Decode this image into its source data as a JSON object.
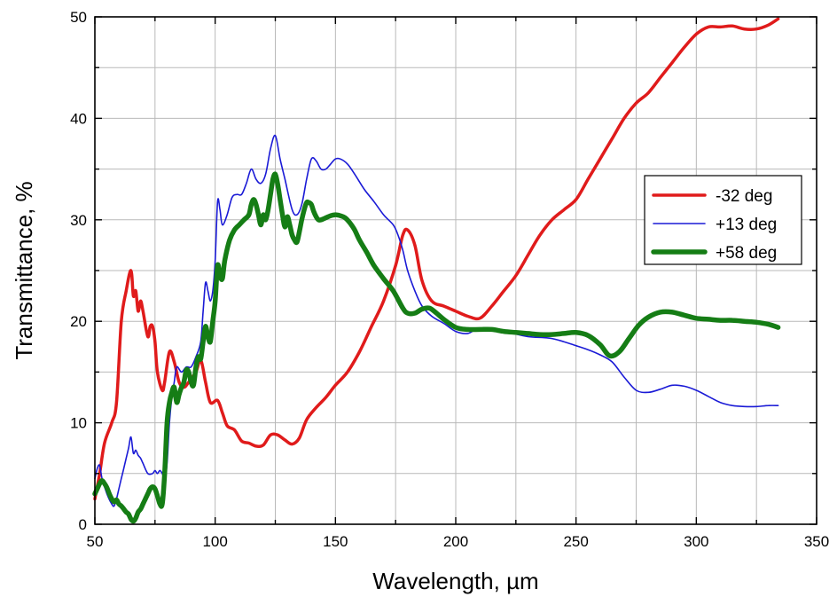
{
  "chart_data": {
    "type": "line",
    "xlabel": "Wavelength, µm",
    "ylabel": "Transmittance, %",
    "xlim": [
      50,
      350
    ],
    "ylim": [
      0,
      50
    ],
    "x_ticks": [
      "50",
      "100",
      "150",
      "200",
      "250",
      "300",
      "350"
    ],
    "y_ticks": [
      "0",
      "10",
      "20",
      "30",
      "40",
      "50"
    ],
    "grid": true,
    "legend_position": "right-middle",
    "series": [
      {
        "name": "-32 deg",
        "color": "#e01b1b",
        "line_width": 3.5,
        "x": [
          50,
          52,
          54,
          57,
          59,
          61,
          63,
          65,
          66,
          67,
          68,
          69,
          70,
          72,
          73,
          74,
          75,
          76,
          78,
          79,
          81,
          83,
          85,
          87,
          89,
          92,
          94,
          96,
          98,
          101,
          103,
          105,
          108,
          111,
          114,
          117,
          120,
          123,
          126,
          129,
          132,
          135,
          138,
          142,
          146,
          150,
          155,
          160,
          165,
          170,
          175,
          178,
          180,
          183,
          186,
          190,
          195,
          200,
          205,
          210,
          215,
          220,
          225,
          230,
          235,
          240,
          245,
          250,
          255,
          260,
          265,
          270,
          275,
          280,
          285,
          290,
          295,
          300,
          305,
          310,
          315,
          320,
          325,
          330,
          334
        ],
        "y": [
          2.5,
          5,
          8,
          10,
          12,
          20,
          23,
          25,
          22.5,
          23,
          21,
          22,
          21,
          18.5,
          19.5,
          19.5,
          18,
          15,
          13.2,
          14,
          17,
          16,
          14,
          13.5,
          14,
          15,
          16.2,
          14,
          12,
          12.2,
          11,
          9.7,
          9.3,
          8.2,
          8,
          7.7,
          7.8,
          8.8,
          8.8,
          8.3,
          7.9,
          8.5,
          10.3,
          11.5,
          12.5,
          13.7,
          15,
          17,
          19.5,
          22,
          25.5,
          28.5,
          29,
          27.5,
          24,
          22,
          21.5,
          21,
          20.5,
          20.3,
          21.5,
          23,
          24.5,
          26.5,
          28.5,
          30,
          31,
          32,
          34,
          36,
          38,
          40,
          41.5,
          42.5,
          44,
          45.5,
          47,
          48.3,
          49,
          49,
          49.1,
          48.8,
          48.8,
          49.2,
          49.8
        ]
      },
      {
        "name": "+13 deg",
        "color": "#1a1ad6",
        "line_width": 1.6,
        "x": [
          50,
          51,
          52,
          53,
          55,
          57,
          58,
          59,
          60,
          61,
          62,
          63,
          64,
          65,
          66,
          67,
          68,
          69,
          70,
          72,
          74,
          75,
          76,
          77,
          78,
          79,
          80,
          81,
          82,
          83,
          84,
          86,
          88,
          90,
          92,
          94,
          95,
          96,
          97,
          98,
          99,
          100,
          101,
          102,
          103,
          105,
          107,
          109,
          111,
          113,
          115,
          117,
          119,
          121,
          123,
          125,
          127,
          129,
          132,
          134,
          136,
          138,
          140,
          142,
          144,
          146,
          148,
          150,
          152,
          155,
          158,
          162,
          166,
          170,
          174,
          176,
          178,
          180,
          183,
          186,
          190,
          195,
          200,
          205,
          210,
          220,
          230,
          240,
          250,
          255,
          260,
          265,
          270,
          275,
          280,
          285,
          290,
          295,
          300,
          305,
          310,
          315,
          320,
          325,
          330,
          334
        ],
        "y": [
          4.5,
          5.5,
          5.8,
          4.5,
          3,
          2,
          1.8,
          2.5,
          3.5,
          4.5,
          5.5,
          6.5,
          7.5,
          8.6,
          7,
          7.3,
          6.8,
          6.5,
          6,
          5,
          5,
          5.3,
          5,
          5.3,
          5,
          4.5,
          6,
          10,
          12.5,
          14,
          15.5,
          15,
          15.5,
          15.5,
          16.5,
          18,
          21,
          23.8,
          23,
          22,
          23,
          26,
          31.8,
          31,
          29.5,
          30.5,
          32.2,
          32.5,
          32.5,
          33.6,
          35,
          34,
          33.6,
          34.5,
          37,
          38.3,
          36,
          34,
          31,
          30.5,
          31.5,
          34,
          36,
          35.8,
          35,
          35,
          35.5,
          36,
          36,
          35.5,
          34.5,
          33,
          31.8,
          30.5,
          29.5,
          28.5,
          27,
          25,
          23,
          21.5,
          20.5,
          19.8,
          19,
          18.8,
          19.3,
          19,
          18.5,
          18.3,
          17.6,
          17.2,
          16.7,
          16,
          14.5,
          13.2,
          13,
          13.3,
          13.7,
          13.6,
          13.2,
          12.6,
          12,
          11.7,
          11.6,
          11.6,
          11.7,
          11.7
        ]
      },
      {
        "name": "+58 deg",
        "color": "#157d15",
        "line_width": 5.5,
        "x": [
          50,
          51,
          52,
          53,
          54,
          55,
          56,
          57,
          58,
          59,
          60,
          61,
          62,
          63,
          64,
          65,
          66,
          67,
          68,
          69,
          70,
          71,
          72,
          73,
          74,
          75,
          76,
          77,
          78,
          79,
          80,
          81,
          82,
          83,
          84,
          85,
          86,
          87,
          88,
          89,
          90,
          91,
          92,
          93,
          94,
          95,
          96,
          97,
          98,
          99,
          100,
          101,
          102,
          103,
          104,
          106,
          108,
          110,
          112,
          114,
          115,
          116,
          117,
          118,
          119,
          120,
          121,
          122,
          123,
          124,
          125,
          126,
          127,
          128,
          129,
          130,
          131,
          132,
          133,
          134,
          135,
          136,
          137,
          138,
          139,
          140,
          141,
          142,
          143,
          144,
          146,
          148,
          150,
          152,
          154,
          156,
          158,
          160,
          163,
          166,
          170,
          174,
          178,
          180,
          183,
          186,
          189,
          192,
          195,
          200,
          205,
          210,
          215,
          220,
          225,
          230,
          235,
          240,
          245,
          250,
          255,
          260,
          264,
          268,
          272,
          276,
          280,
          285,
          290,
          295,
          300,
          305,
          310,
          315,
          320,
          325,
          330,
          334
        ],
        "y": [
          3,
          3.5,
          4,
          4.3,
          4,
          3.6,
          3,
          2.5,
          2.2,
          2.4,
          2,
          1.8,
          1.5,
          1.2,
          1,
          0.5,
          0.3,
          0.6,
          1.2,
          1.5,
          2,
          2.5,
          3,
          3.5,
          3.7,
          3.5,
          2.8,
          2,
          2,
          5,
          10,
          12,
          13,
          13.5,
          12,
          12.8,
          13.5,
          14,
          15.2,
          15,
          14,
          13.7,
          15.5,
          16.5,
          16.3,
          18,
          19.5,
          18.5,
          18,
          20,
          22,
          25.5,
          24.5,
          24.2,
          26,
          28,
          29,
          29.5,
          30,
          30.5,
          31.5,
          32,
          31.5,
          30.5,
          29.5,
          30.5,
          30,
          31,
          32.5,
          34,
          34.5,
          33.5,
          32,
          30.5,
          29.3,
          30.3,
          29.5,
          28.5,
          28,
          27.8,
          28.8,
          30,
          31,
          31.7,
          31.7,
          31.5,
          30.8,
          30.3,
          30,
          30,
          30.2,
          30.4,
          30.5,
          30.4,
          30.2,
          29.7,
          29,
          28,
          26.8,
          25.5,
          24.2,
          23,
          21.3,
          20.8,
          20.8,
          21.2,
          21.3,
          20.8,
          20.2,
          19.4,
          19.2,
          19.2,
          19.2,
          19,
          18.9,
          18.8,
          18.7,
          18.7,
          18.8,
          18.9,
          18.6,
          17.7,
          16.6,
          17,
          18.3,
          19.6,
          20.4,
          20.9,
          20.9,
          20.6,
          20.3,
          20.2,
          20.1,
          20.1,
          20,
          19.9,
          19.7,
          19.4
        ]
      }
    ]
  }
}
